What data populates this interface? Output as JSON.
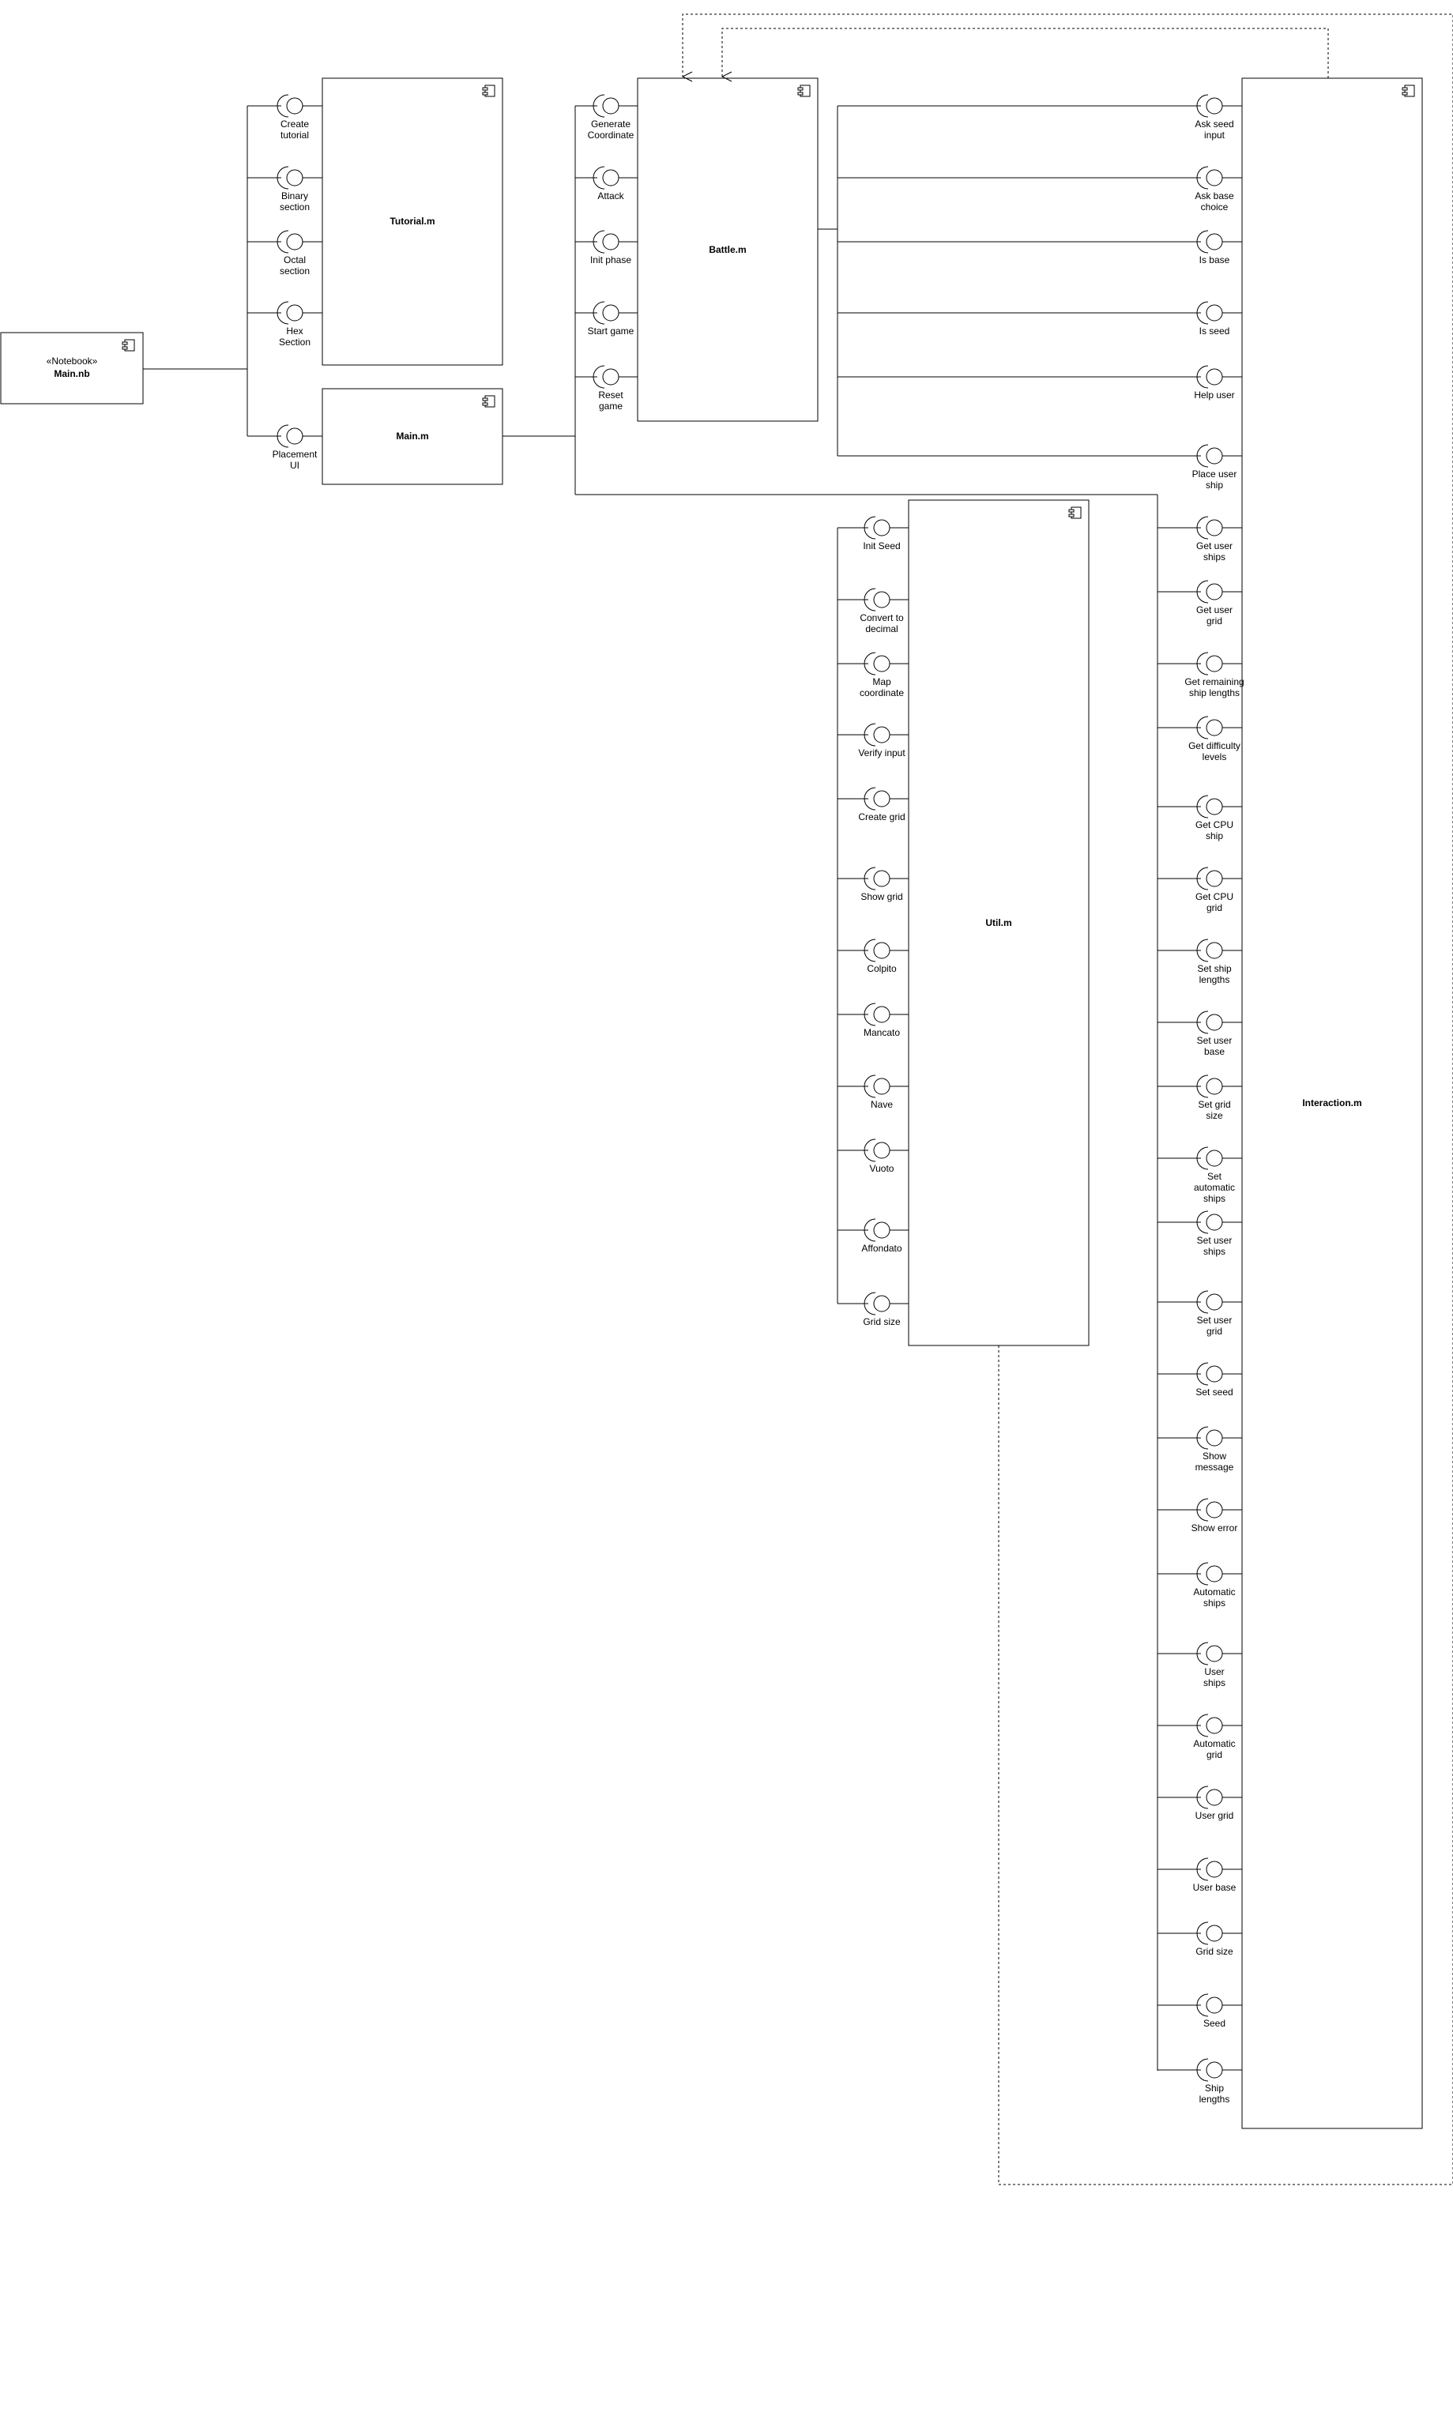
{
  "components": {
    "main_nb": {
      "stereotype": "«Notebook»",
      "name": "Main.nb"
    },
    "tutorial": {
      "name": "Tutorial.m"
    },
    "main_m": {
      "name": "Main.m"
    },
    "battle": {
      "name": "Battle.m"
    },
    "util": {
      "name": "Util.m"
    },
    "interaction": {
      "name": "Interaction.m"
    }
  },
  "interfaces": {
    "tutorial": [
      [
        "Create",
        "tutorial"
      ],
      [
        "Binary",
        "section"
      ],
      [
        "Octal",
        "section"
      ],
      [
        "Hex",
        "Section"
      ]
    ],
    "main": [
      [
        "Placement",
        "UI"
      ]
    ],
    "battle": [
      [
        "Generate",
        "Coordinate"
      ],
      [
        "Attack"
      ],
      [
        "Init phase"
      ],
      [
        "Start game"
      ],
      [
        "Reset",
        "game"
      ]
    ],
    "util": [
      [
        "Init Seed"
      ],
      [
        "Convert to",
        "decimal"
      ],
      [
        "Map",
        "coordinate"
      ],
      [
        "Verify input"
      ],
      [
        "Create grid"
      ],
      [
        "Show grid"
      ],
      [
        "Colpito"
      ],
      [
        "Mancato"
      ],
      [
        "Nave"
      ],
      [
        "Vuoto"
      ],
      [
        "Affondato"
      ],
      [
        "Grid size"
      ]
    ],
    "interaction": [
      [
        "Ask seed",
        "input"
      ],
      [
        "Ask base",
        "choice"
      ],
      [
        "Is base"
      ],
      [
        "Is seed"
      ],
      [
        "Help user"
      ],
      [
        "Place user",
        "ship"
      ],
      [
        "Get user",
        "ships"
      ],
      [
        "Get user",
        "grid"
      ],
      [
        "Get remaining",
        "ship lengths"
      ],
      [
        "Get difficulty",
        "levels"
      ],
      [
        "Get CPU",
        "ship"
      ],
      [
        "Get CPU",
        "grid"
      ],
      [
        "Set ship",
        "lengths"
      ],
      [
        "Set user",
        "base"
      ],
      [
        "Set grid",
        "size"
      ],
      [
        "Set",
        "automatic",
        "ships"
      ],
      [
        "Set user",
        "ships"
      ],
      [
        "Set user",
        "grid"
      ],
      [
        "Set seed"
      ],
      [
        "Show",
        "message"
      ],
      [
        "Show error"
      ],
      [
        "Automatic",
        "ships"
      ],
      [
        "User",
        "ships"
      ],
      [
        "Automatic",
        "grid"
      ],
      [
        "User grid"
      ],
      [
        "User base"
      ],
      [
        "Grid size"
      ],
      [
        "Seed"
      ],
      [
        "Ship",
        "lengths"
      ]
    ]
  }
}
